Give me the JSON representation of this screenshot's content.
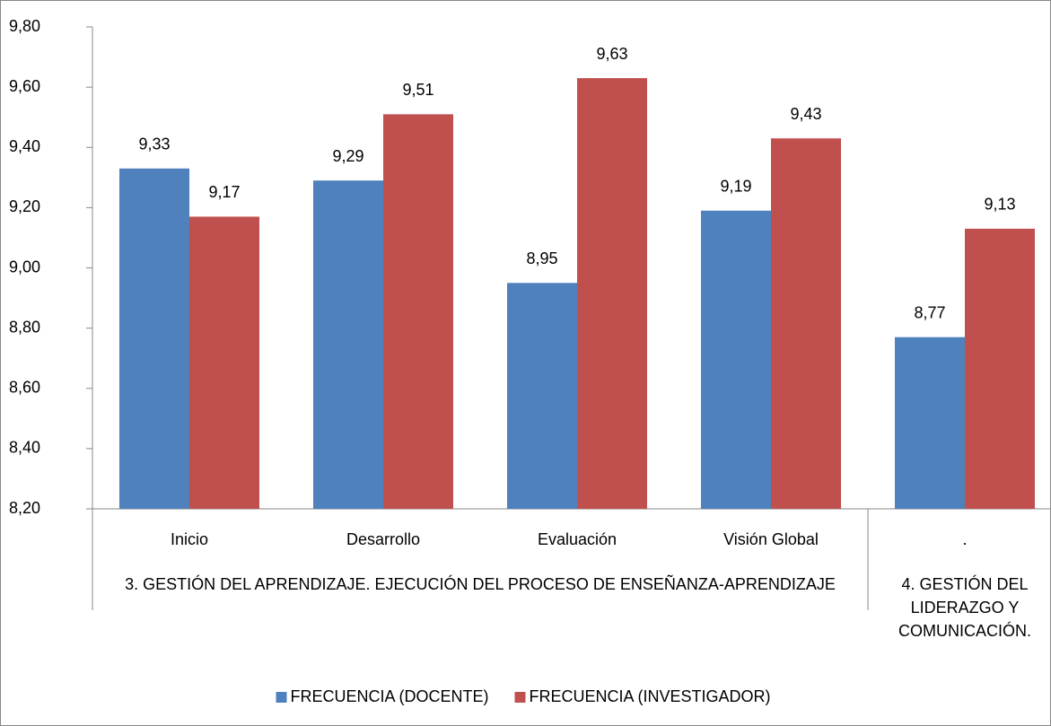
{
  "chart_data": {
    "type": "bar",
    "groups": [
      {
        "name": "3. GESTIÓN DEL APRENDIZAJE. EJECUCIÓN DEL PROCESO DE ENSEÑANZA-APRENDIZAJE",
        "categories": [
          "Inicio",
          "Desarrollo",
          "Evaluación",
          "Visión Global"
        ]
      },
      {
        "name": "4. GESTIÓN DEL LIDERAZGO Y COMUNICACIÓN.",
        "categories": [
          "."
        ]
      }
    ],
    "series": [
      {
        "name": "FRECUENCIA (DOCENTE)",
        "color": "#4f81bd",
        "values": [
          9.33,
          9.29,
          8.95,
          9.19,
          8.77
        ],
        "value_labels": [
          "9,33",
          "9,29",
          "8,95",
          "9,19",
          "8,77"
        ]
      },
      {
        "name": "FRECUENCIA (INVESTIGADOR)",
        "color": "#c0504d",
        "values": [
          9.17,
          9.51,
          9.63,
          9.43,
          9.13
        ],
        "value_labels": [
          "9,17",
          "9,51",
          "9,63",
          "9,43",
          "9,13"
        ]
      }
    ],
    "ylim": [
      8.2,
      9.8
    ],
    "yticks": [
      {
        "value": 8.2,
        "label": "8,20"
      },
      {
        "value": 8.4,
        "label": "8,40"
      },
      {
        "value": 8.6,
        "label": "8,60"
      },
      {
        "value": 8.8,
        "label": "8,80"
      },
      {
        "value": 9.0,
        "label": "9,00"
      },
      {
        "value": 9.2,
        "label": "9,20"
      },
      {
        "value": 9.4,
        "label": "9,40"
      },
      {
        "value": 9.6,
        "label": "9,60"
      },
      {
        "value": 9.8,
        "label": "9,80"
      }
    ],
    "legend": "bottom"
  }
}
